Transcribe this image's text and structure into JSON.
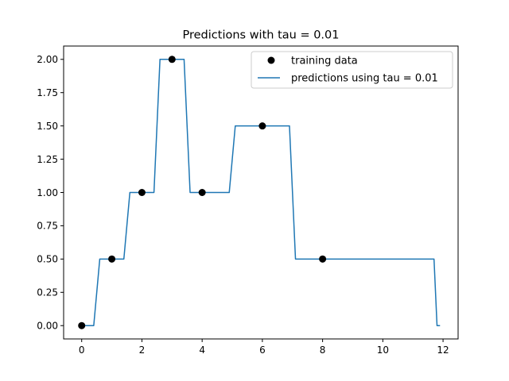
{
  "chart_data": {
    "type": "scatter+line",
    "title": "Predictions with tau = 0.01",
    "xlabel": "",
    "ylabel": "",
    "xlim": [
      -0.6,
      12.5
    ],
    "ylim": [
      -0.1,
      2.1
    ],
    "xticks": [
      0,
      2,
      4,
      6,
      8,
      10,
      12
    ],
    "yticks": [
      0.0,
      0.25,
      0.5,
      0.75,
      1.0,
      1.25,
      1.5,
      1.75,
      2.0
    ],
    "ytick_labels": [
      "0.00",
      "0.25",
      "0.50",
      "0.75",
      "1.00",
      "1.25",
      "1.50",
      "1.75",
      "2.00"
    ],
    "xtick_labels": [
      "0",
      "2",
      "4",
      "6",
      "8",
      "10",
      "12"
    ],
    "grid": false,
    "legend_position": "top-right",
    "training_data": {
      "name": "training data",
      "color": "#000000",
      "x": [
        0,
        1,
        2,
        3,
        4,
        6,
        8
      ],
      "y": [
        0,
        0.5,
        1.0,
        2.0,
        1.0,
        1.5,
        0.5
      ]
    },
    "predictions": {
      "name": "predictions using tau = 0.01",
      "color": "#1f77b4",
      "tau": 0.01,
      "x_start": 0,
      "x_end": 11.9,
      "x_step": 0.1
    }
  }
}
